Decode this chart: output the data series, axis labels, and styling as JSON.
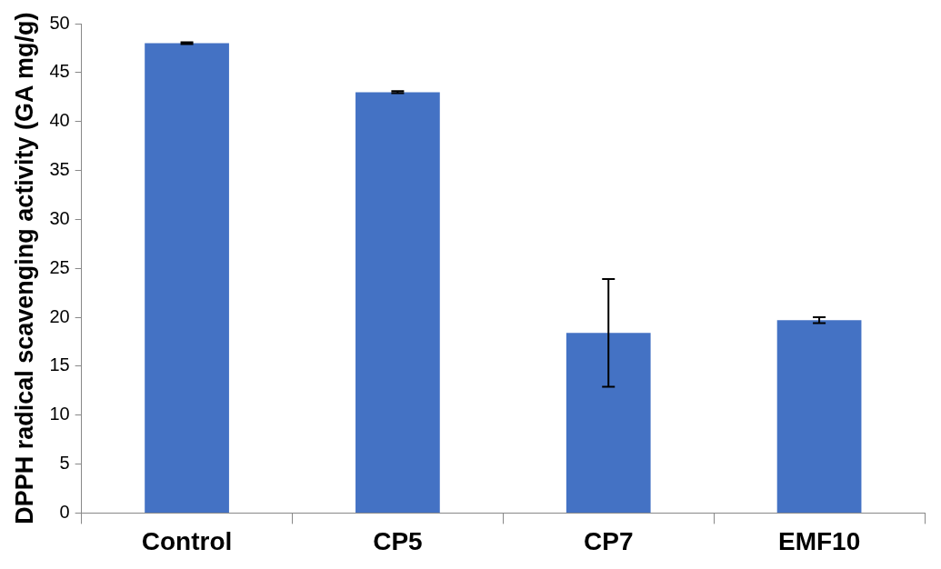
{
  "chart_data": {
    "type": "bar",
    "ylabel": "DPPH radical scavenging activity (GA mg/g)",
    "categories": [
      "Control",
      "CP5",
      "CP7",
      "EMF10"
    ],
    "values": [
      48.0,
      43.0,
      18.4,
      19.7
    ],
    "errors": [
      0.1,
      0.1,
      5.5,
      0.3
    ],
    "color": "#4472c4",
    "ylim": [
      0,
      50
    ],
    "yticks": [
      0,
      5,
      10,
      15,
      20,
      25,
      30,
      35,
      40,
      45,
      50
    ],
    "grid": false,
    "legend": false
  }
}
